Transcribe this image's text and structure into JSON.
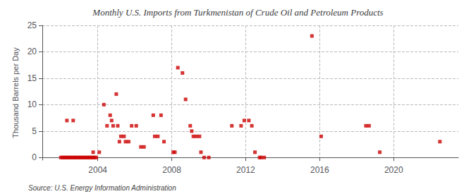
{
  "chart_data": {
    "type": "scatter",
    "title": "Monthly U.S. Imports from Turkmenistan of Crude Oil and Petroleum Products",
    "ylabel": "Thousand Barrels per Day",
    "annotation": "Source: U.S. Energy Information Administration",
    "color": "#cc0000",
    "marker": "square",
    "grid": true,
    "xlim": [
      2001.0,
      2023.5
    ],
    "xticks": [
      2004,
      2008,
      2012,
      2016,
      2020
    ],
    "ylim": [
      -0.5,
      25
    ],
    "yticks": [
      0,
      5,
      10,
      15,
      20,
      25
    ],
    "x": [
      2002.0,
      2002.08,
      2002.17,
      2002.25,
      2002.33,
      2002.42,
      2002.5,
      2002.58,
      2002.67,
      2002.75,
      2002.83,
      2002.92,
      2003.0,
      2003.08,
      2003.17,
      2003.25,
      2003.33,
      2003.42,
      2003.5,
      2003.58,
      2003.67,
      2003.75,
      2003.83,
      2003.92,
      2002.33,
      2002.67,
      2003.75,
      2004.08,
      2004.33,
      2004.5,
      2004.67,
      2004.75,
      2004.83,
      2005.0,
      2005.08,
      2005.17,
      2005.25,
      2005.42,
      2005.5,
      2005.67,
      2005.83,
      2006.08,
      2006.33,
      2006.5,
      2007.0,
      2007.08,
      2007.25,
      2007.42,
      2007.58,
      2008.08,
      2008.17,
      2008.33,
      2008.58,
      2008.75,
      2009.0,
      2009.08,
      2009.17,
      2009.33,
      2009.5,
      2009.58,
      2009.75,
      2010.0,
      2011.25,
      2011.75,
      2011.92,
      2012.17,
      2012.33,
      2012.5,
      2012.75,
      2012.83,
      2013.0,
      2015.58,
      2016.08,
      2018.5,
      2018.67,
      2019.25,
      2022.5
    ],
    "values": [
      0,
      0,
      0,
      0,
      0,
      0,
      0,
      0,
      0,
      0,
      0,
      0,
      0,
      0,
      0,
      0,
      0,
      0,
      0,
      0,
      0,
      0,
      0,
      0,
      7,
      7,
      1,
      1,
      10,
      6,
      8,
      7,
      6,
      12,
      6,
      3,
      4,
      4,
      3,
      3,
      6,
      6,
      2,
      2,
      8,
      4,
      4,
      8,
      3,
      1,
      1,
      17,
      16,
      11,
      6,
      5,
      4,
      4,
      4,
      1,
      0,
      0,
      6,
      6,
      7,
      7,
      6,
      1,
      0,
      0,
      0,
      23,
      4,
      6,
      6,
      1,
      3
    ]
  }
}
